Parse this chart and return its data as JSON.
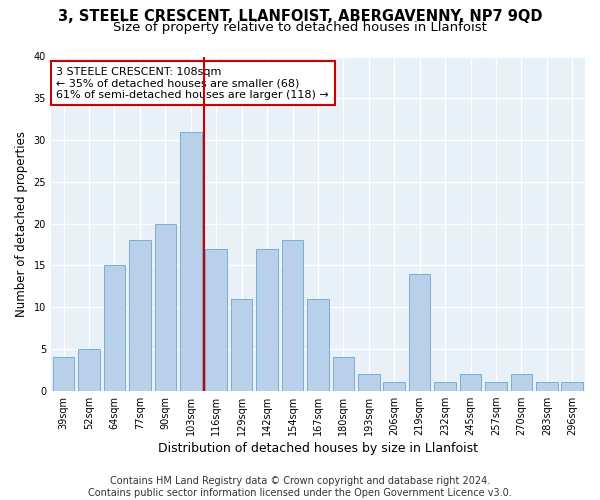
{
  "title": "3, STEELE CRESCENT, LLANFOIST, ABERGAVENNY, NP7 9QD",
  "subtitle": "Size of property relative to detached houses in Llanfoist",
  "xlabel": "Distribution of detached houses by size in Llanfoist",
  "ylabel": "Number of detached properties",
  "categories": [
    "39sqm",
    "52sqm",
    "64sqm",
    "77sqm",
    "90sqm",
    "103sqm",
    "116sqm",
    "129sqm",
    "142sqm",
    "154sqm",
    "167sqm",
    "180sqm",
    "193sqm",
    "206sqm",
    "219sqm",
    "232sqm",
    "245sqm",
    "257sqm",
    "270sqm",
    "283sqm",
    "296sqm"
  ],
  "values": [
    4,
    5,
    15,
    18,
    20,
    31,
    17,
    11,
    17,
    18,
    11,
    4,
    2,
    1,
    14,
    1,
    2,
    1,
    2,
    1,
    1
  ],
  "bar_color": "#b8d0ea",
  "bar_edge_color": "#7aaed4",
  "vline_x": 5.5,
  "vline_color": "#cc0000",
  "annotation_text": "3 STEELE CRESCENT: 108sqm\n← 35% of detached houses are smaller (68)\n61% of semi-detached houses are larger (118) →",
  "annotation_box_color": "#ffffff",
  "annotation_box_edge_color": "#cc0000",
  "ylim": [
    0,
    40
  ],
  "yticks": [
    0,
    5,
    10,
    15,
    20,
    25,
    30,
    35,
    40
  ],
  "footer": "Contains HM Land Registry data © Crown copyright and database right 2024.\nContains public sector information licensed under the Open Government Licence v3.0.",
  "bg_color": "#e8f0f8",
  "grid_color": "#ffffff",
  "fig_bg_color": "#ffffff",
  "title_fontsize": 10.5,
  "subtitle_fontsize": 9.5,
  "xlabel_fontsize": 9,
  "ylabel_fontsize": 8.5,
  "tick_fontsize": 7,
  "footer_fontsize": 7,
  "annotation_fontsize": 8
}
